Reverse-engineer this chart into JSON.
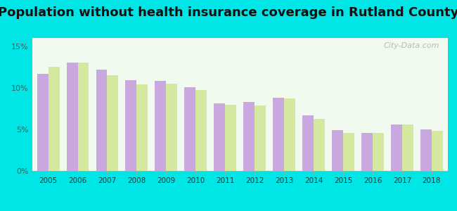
{
  "title": "Population without health insurance coverage in Rutland County",
  "years": [
    2005,
    2006,
    2007,
    2008,
    2009,
    2010,
    2011,
    2012,
    2013,
    2014,
    2015,
    2016,
    2017,
    2018
  ],
  "rutland_county": [
    11.7,
    13.0,
    12.2,
    10.9,
    10.8,
    10.1,
    8.1,
    8.3,
    8.8,
    6.7,
    4.9,
    4.6,
    5.6,
    5.0
  ],
  "vermont_avg": [
    12.5,
    13.0,
    11.5,
    10.4,
    10.5,
    9.7,
    8.0,
    7.9,
    8.7,
    6.3,
    4.6,
    4.6,
    5.6,
    4.8
  ],
  "rutland_color": "#c9a8e0",
  "vermont_color": "#d4e8a0",
  "bar_width": 0.38,
  "ylim": [
    0,
    16
  ],
  "yticks": [
    0,
    5,
    10,
    15
  ],
  "ytick_labels": [
    "0%",
    "5%",
    "10%",
    "15%"
  ],
  "background_color": "#00e5e5",
  "plot_bg_color": "#f0faee",
  "title_fontsize": 13,
  "watermark": "City-Data.com"
}
